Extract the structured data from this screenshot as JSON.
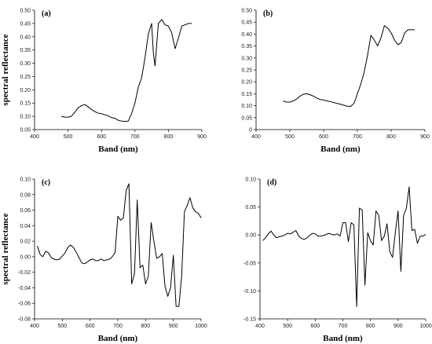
{
  "chart_data": [
    {
      "type": "line",
      "panel_label": "(a)",
      "xlabel": "Band (nm)",
      "ylabel": "spectral reflectance",
      "xlim": [
        400,
        900
      ],
      "ylim": [
        0.05,
        0.5
      ],
      "xticks": [
        400,
        500,
        600,
        700,
        800,
        900
      ],
      "yticks": [
        0.05,
        0.1,
        0.15,
        0.2,
        0.25,
        0.3,
        0.35,
        0.4,
        0.45,
        0.5
      ],
      "ytick_labels": [
        "0.05",
        "0.10",
        "0.15",
        "0.20",
        "0.25",
        "0.30",
        "0.35",
        "0.40",
        "0.45",
        "0.50"
      ],
      "x": [
        480,
        490,
        500,
        510,
        520,
        530,
        540,
        550,
        560,
        570,
        580,
        590,
        600,
        610,
        620,
        630,
        640,
        650,
        660,
        670,
        680,
        690,
        700,
        710,
        720,
        730,
        740,
        750,
        755,
        760,
        770,
        780,
        790,
        800,
        810,
        820,
        830,
        840,
        850,
        860,
        870
      ],
      "y": [
        0.1,
        0.097,
        0.097,
        0.1,
        0.115,
        0.132,
        0.14,
        0.145,
        0.136,
        0.126,
        0.118,
        0.112,
        0.11,
        0.106,
        0.102,
        0.095,
        0.093,
        0.085,
        0.082,
        0.081,
        0.082,
        0.11,
        0.15,
        0.21,
        0.245,
        0.32,
        0.41,
        0.45,
        0.34,
        0.29,
        0.45,
        0.465,
        0.445,
        0.44,
        0.415,
        0.355,
        0.395,
        0.44,
        0.445,
        0.45,
        0.45
      ]
    },
    {
      "type": "line",
      "panel_label": "(b)",
      "xlabel": "Band (nm)",
      "ylabel": "",
      "xlim": [
        400,
        900
      ],
      "ylim": [
        0.0,
        0.5
      ],
      "xticks": [
        400,
        500,
        600,
        700,
        800,
        900
      ],
      "yticks": [
        0.0,
        0.05,
        0.1,
        0.15,
        0.2,
        0.25,
        0.3,
        0.35,
        0.4,
        0.45,
        0.5
      ],
      "ytick_labels": [
        "0",
        "0.05",
        "0.10",
        "0.15",
        "0.20",
        "0.25",
        "0.30",
        "0.35",
        "0.40",
        "0.45",
        "0.50"
      ],
      "x": [
        480,
        490,
        500,
        510,
        520,
        530,
        540,
        550,
        560,
        570,
        580,
        590,
        600,
        610,
        620,
        630,
        640,
        650,
        660,
        670,
        680,
        690,
        700,
        710,
        720,
        730,
        740,
        750,
        760,
        770,
        780,
        790,
        800,
        810,
        820,
        830,
        840,
        850,
        860,
        870
      ],
      "y": [
        0.12,
        0.115,
        0.115,
        0.12,
        0.128,
        0.14,
        0.148,
        0.15,
        0.146,
        0.14,
        0.132,
        0.126,
        0.124,
        0.12,
        0.117,
        0.113,
        0.11,
        0.106,
        0.102,
        0.098,
        0.097,
        0.11,
        0.15,
        0.19,
        0.24,
        0.31,
        0.395,
        0.375,
        0.35,
        0.385,
        0.435,
        0.425,
        0.405,
        0.375,
        0.355,
        0.365,
        0.405,
        0.418,
        0.418,
        0.418
      ]
    },
    {
      "type": "line",
      "panel_label": "(c)",
      "xlabel": "Band (nm)",
      "ylabel": "spectral reflectance",
      "xlim": [
        400,
        1000
      ],
      "ylim": [
        -0.08,
        0.1
      ],
      "xticks": [
        400,
        500,
        600,
        700,
        800,
        900,
        1000
      ],
      "yticks": [
        -0.08,
        -0.06,
        -0.04,
        -0.02,
        0.0,
        0.02,
        0.04,
        0.06,
        0.08,
        0.1
      ],
      "ytick_labels": [
        "-0.08",
        "-0.06",
        "-0.04",
        "-0.02",
        "0.00",
        "0.02",
        "0.04",
        "0.06",
        "0.08",
        "0.10"
      ],
      "x": [
        410,
        420,
        430,
        440,
        450,
        460,
        470,
        480,
        490,
        500,
        510,
        520,
        530,
        540,
        550,
        560,
        570,
        580,
        590,
        600,
        610,
        620,
        630,
        640,
        650,
        660,
        670,
        680,
        690,
        700,
        710,
        720,
        730,
        740,
        750,
        760,
        770,
        780,
        790,
        800,
        810,
        820,
        830,
        840,
        850,
        860,
        870,
        880,
        890,
        900,
        910,
        920,
        930,
        940,
        950,
        960,
        970,
        980,
        990,
        1000
      ],
      "y": [
        0.014,
        0.003,
        0.0,
        0.007,
        0.005,
        -0.001,
        -0.003,
        -0.004,
        -0.003,
        0.001,
        0.005,
        0.012,
        0.015,
        0.012,
        0.006,
        -0.001,
        -0.008,
        -0.009,
        -0.007,
        -0.004,
        -0.003,
        -0.005,
        -0.005,
        -0.003,
        -0.005,
        -0.004,
        -0.003,
        0.0,
        0.005,
        0.052,
        0.047,
        0.05,
        0.085,
        0.094,
        -0.035,
        -0.022,
        0.073,
        -0.014,
        -0.011,
        -0.035,
        -0.025,
        0.044,
        0.02,
        -0.002,
        0.0,
        0.004,
        -0.038,
        -0.051,
        -0.04,
        0.002,
        -0.064,
        -0.064,
        -0.025,
        0.058,
        0.066,
        0.076,
        0.063,
        0.058,
        0.056,
        0.05
      ]
    },
    {
      "type": "line",
      "panel_label": "(d)",
      "xlabel": "Band (nm)",
      "ylabel": "",
      "xlim": [
        400,
        1000
      ],
      "ylim": [
        -0.15,
        0.1
      ],
      "xticks": [
        400,
        500,
        600,
        700,
        800,
        900,
        1000
      ],
      "yticks": [
        -0.15,
        -0.1,
        -0.05,
        0.0,
        0.05,
        0.1
      ],
      "ytick_labels": [
        "-0.15",
        "-0.10",
        "-0.05",
        "0.00",
        "0.05",
        "0.10"
      ],
      "x": [
        410,
        420,
        430,
        440,
        450,
        460,
        470,
        480,
        490,
        500,
        510,
        520,
        530,
        540,
        550,
        560,
        570,
        580,
        590,
        600,
        610,
        620,
        630,
        640,
        650,
        660,
        670,
        680,
        690,
        700,
        710,
        720,
        730,
        740,
        750,
        760,
        770,
        780,
        790,
        800,
        810,
        820,
        830,
        840,
        850,
        860,
        870,
        880,
        890,
        900,
        910,
        920,
        930,
        940,
        950,
        960,
        970,
        980,
        990,
        1000
      ],
      "y": [
        -0.01,
        -0.005,
        0.002,
        0.007,
        0.0,
        -0.005,
        -0.003,
        -0.002,
        0.0,
        0.003,
        0.002,
        0.005,
        0.008,
        -0.002,
        -0.006,
        -0.008,
        -0.005,
        -0.001,
        0.003,
        0.002,
        -0.002,
        -0.002,
        -0.001,
        0.001,
        0.003,
        0.001,
        0.0,
        0.002,
        -0.002,
        0.022,
        0.022,
        -0.012,
        0.022,
        0.018,
        -0.128,
        0.048,
        0.045,
        -0.09,
        0.004,
        -0.01,
        -0.018,
        0.043,
        0.035,
        -0.01,
        -0.002,
        0.02,
        -0.03,
        -0.04,
        0.005,
        0.043,
        -0.065,
        0.035,
        0.048,
        0.086,
        0.008,
        0.01,
        -0.015,
        -0.002,
        -0.002,
        0.001
      ]
    }
  ]
}
